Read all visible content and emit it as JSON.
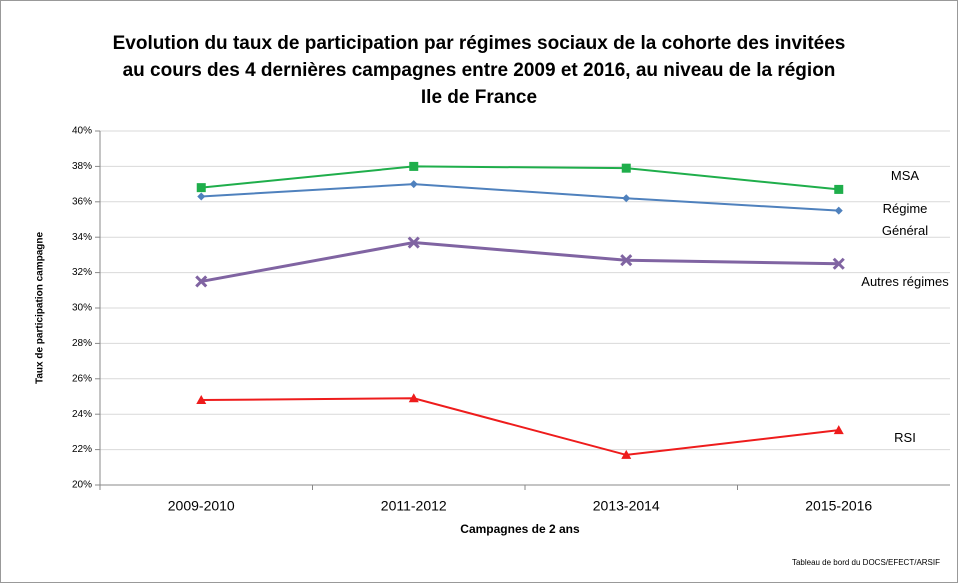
{
  "chart_data": {
    "type": "line",
    "title": [
      "Evolution du taux de participation par régimes sociaux de la cohorte des invitées",
      "au cours des 4 dernières campagnes  entre 2009 et 2016, au niveau de la région",
      "Ile de France"
    ],
    "x_label": "Campagnes de 2 ans",
    "y_label": "Taux de participation campagne",
    "source": "Tableau de bord du DOCS/EFECT/ARSIF",
    "categories": [
      "2009-2010",
      "2011-2012",
      "2013-2014",
      "2015-2016"
    ],
    "series": [
      {
        "name": "MSA",
        "color": "#1fae4b",
        "marker": "square",
        "values": [
          36.8,
          38.0,
          37.9,
          36.7
        ]
      },
      {
        "name": "Régime Général",
        "color": "#4f81bd",
        "marker": "diamond",
        "values": [
          36.3,
          37.0,
          36.2,
          35.5
        ]
      },
      {
        "name": "Autres régimes",
        "color": "#8064a2",
        "marker": "x",
        "values": [
          31.5,
          33.7,
          32.7,
          32.5
        ]
      },
      {
        "name": "RSI",
        "color": "#ee1c1c",
        "marker": "triangle",
        "values": [
          24.8,
          24.9,
          21.7,
          23.1
        ]
      }
    ],
    "ylim": [
      20,
      40
    ],
    "yticks": [
      {
        "value": 20,
        "label": "20%"
      },
      {
        "value": 22,
        "label": "22%"
      },
      {
        "value": 24,
        "label": "24%"
      },
      {
        "value": 26,
        "label": "26%"
      },
      {
        "value": 28,
        "label": "28%"
      },
      {
        "value": 30,
        "label": "30%"
      },
      {
        "value": 32,
        "label": "32%"
      },
      {
        "value": 34,
        "label": "34%"
      },
      {
        "value": 36,
        "label": "36%"
      },
      {
        "value": 38,
        "label": "38%"
      },
      {
        "value": 40,
        "label": "40%"
      }
    ],
    "grid": true
  }
}
